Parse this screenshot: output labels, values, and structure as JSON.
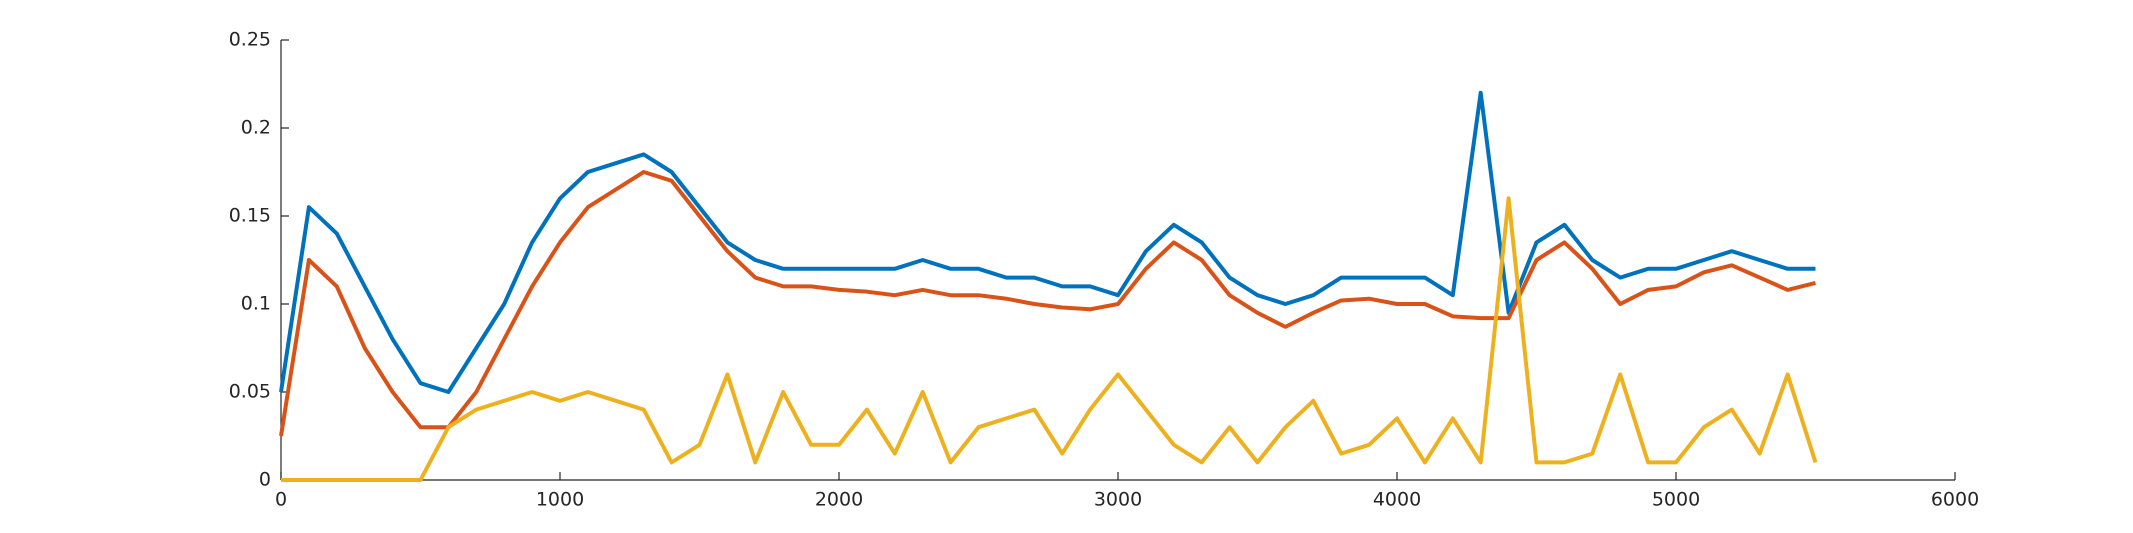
{
  "chart_data": {
    "type": "line",
    "x": [
      0,
      100,
      200,
      300,
      400,
      500,
      600,
      700,
      800,
      900,
      1000,
      1100,
      1200,
      1300,
      1400,
      1500,
      1600,
      1700,
      1800,
      1900,
      2000,
      2100,
      2200,
      2300,
      2400,
      2500,
      2600,
      2700,
      2800,
      2900,
      3000,
      3100,
      3200,
      3300,
      3400,
      3500,
      3600,
      3700,
      3800,
      3900,
      4000,
      4100,
      4200,
      4300,
      4400,
      4500,
      4600,
      4700,
      4800,
      4900,
      5000,
      5100,
      5200,
      5300,
      5400,
      5500
    ],
    "series": [
      {
        "color": "#0072bd",
        "values": [
          0.05,
          0.155,
          0.14,
          0.11,
          0.08,
          0.055,
          0.05,
          0.075,
          0.1,
          0.135,
          0.16,
          0.175,
          0.18,
          0.185,
          0.175,
          0.155,
          0.135,
          0.125,
          0.12,
          0.12,
          0.12,
          0.12,
          0.12,
          0.125,
          0.12,
          0.12,
          0.115,
          0.115,
          0.11,
          0.11,
          0.105,
          0.13,
          0.145,
          0.135,
          0.115,
          0.105,
          0.1,
          0.105,
          0.115,
          0.115,
          0.115,
          0.115,
          0.105,
          0.22,
          0.095,
          0.135,
          0.145,
          0.125,
          0.115,
          0.12,
          0.12,
          0.125,
          0.13,
          0.125,
          0.12,
          0.12
        ]
      },
      {
        "color": "#d95319",
        "values": [
          0.025,
          0.125,
          0.11,
          0.075,
          0.05,
          0.03,
          0.03,
          0.05,
          0.08,
          0.11,
          0.135,
          0.155,
          0.165,
          0.175,
          0.17,
          0.15,
          0.13,
          0.115,
          0.11,
          0.11,
          0.108,
          0.107,
          0.105,
          0.108,
          0.105,
          0.105,
          0.103,
          0.1,
          0.098,
          0.097,
          0.1,
          0.12,
          0.135,
          0.125,
          0.105,
          0.095,
          0.087,
          0.095,
          0.102,
          0.103,
          0.1,
          0.1,
          0.093,
          0.092,
          0.092,
          0.125,
          0.135,
          0.12,
          0.1,
          0.108,
          0.11,
          0.118,
          0.122,
          0.115,
          0.108,
          0.112
        ]
      },
      {
        "color": "#edb120",
        "values": [
          0,
          0,
          0,
          0,
          0,
          0,
          0.03,
          0.04,
          0.045,
          0.05,
          0.045,
          0.05,
          0.045,
          0.04,
          0.01,
          0.02,
          0.06,
          0.01,
          0.05,
          0.02,
          0.02,
          0.04,
          0.015,
          0.05,
          0.01,
          0.03,
          0.035,
          0.04,
          0.015,
          0.04,
          0.06,
          0.04,
          0.02,
          0.01,
          0.03,
          0.01,
          0.03,
          0.045,
          0.015,
          0.02,
          0.035,
          0.01,
          0.035,
          0.01,
          0.16,
          0.01,
          0.01,
          0.015,
          0.06,
          0.01,
          0.01,
          0.03,
          0.04,
          0.015,
          0.06,
          0.01
        ]
      }
    ],
    "xlim": [
      0,
      6000
    ],
    "xticks": [
      0,
      1000,
      2000,
      3000,
      4000,
      5000,
      6000
    ],
    "ylim": [
      0,
      0.25
    ],
    "yticks": [
      0,
      0.05,
      0.1,
      0.15,
      0.2,
      0.25
    ]
  }
}
